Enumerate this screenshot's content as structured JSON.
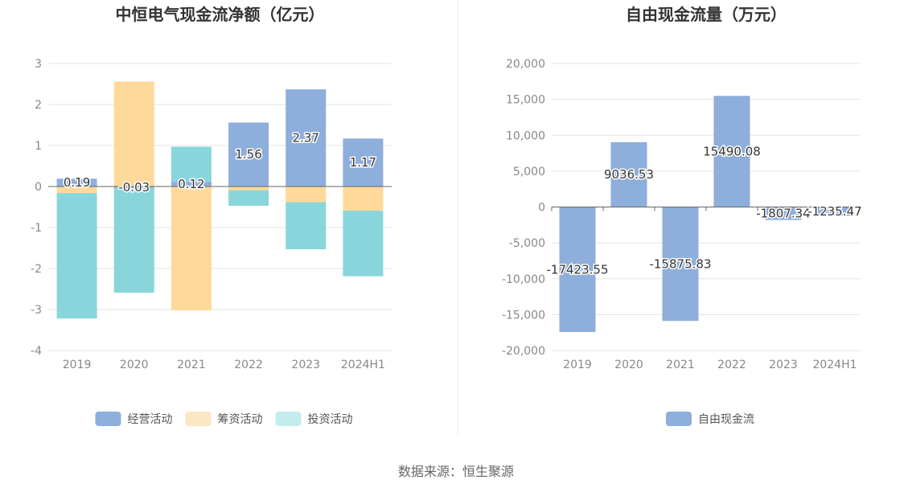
{
  "source_text": "数据来源：恒生聚源",
  "chart_data": [
    {
      "type": "bar",
      "stacked": true,
      "title": "中恒电气现金流净额（亿元）",
      "categories": [
        "2019",
        "2020",
        "2021",
        "2022",
        "2023",
        "2024H1"
      ],
      "ylim": [
        -4,
        3
      ],
      "yticks": [
        3,
        2,
        1,
        0,
        -1,
        -2,
        -3,
        -4
      ],
      "grid": true,
      "legend_position": "bottom",
      "series": [
        {
          "name": "经营活动",
          "color": "#8eaedb",
          "legend_color": "#8eaedb",
          "values": [
            0.19,
            -0.03,
            0.12,
            1.56,
            2.37,
            1.17
          ],
          "labels": [
            "0.19",
            "-0.03",
            "0.12",
            "1.56",
            "2.37",
            "1.17"
          ]
        },
        {
          "name": "筹资活动",
          "color": "#ffd99a",
          "legend_color": "#fde6c3",
          "values": [
            -0.16,
            2.56,
            -3.02,
            -0.09,
            -0.38,
            -0.59
          ]
        },
        {
          "name": "投资活动",
          "color": "#88d6db",
          "legend_color": "#c3ecee",
          "values": [
            -3.06,
            -2.56,
            0.85,
            -0.38,
            -1.15,
            -1.6
          ]
        }
      ]
    },
    {
      "type": "bar",
      "title": "自由现金流量（万元）",
      "categories": [
        "2019",
        "2020",
        "2021",
        "2022",
        "2023",
        "2024H1"
      ],
      "ylim": [
        -20000,
        20000
      ],
      "yticks": [
        20000,
        15000,
        10000,
        5000,
        0,
        -5000,
        -10000,
        -15000,
        -20000
      ],
      "ytick_labels": [
        "20,000",
        "15,000",
        "10,000",
        "5,000",
        "0",
        "-5,000",
        "-10,000",
        "-15,000",
        "-20,000"
      ],
      "grid": true,
      "legend_position": "bottom",
      "series": [
        {
          "name": "自由现金流",
          "color": "#8eaedb",
          "legend_color": "#8eaedb",
          "values": [
            -17423.55,
            9036.53,
            -15875.83,
            15490.08,
            -1807.34,
            -1235.47
          ],
          "labels": [
            "-17423.55",
            "9036.53",
            "-15875.83",
            "15490.08",
            "-1807.34",
            "-1235.47"
          ]
        }
      ]
    }
  ]
}
